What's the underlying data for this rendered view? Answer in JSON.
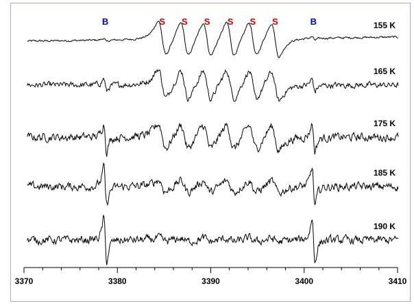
{
  "colors": {
    "s_marker": "#cc0000",
    "b_marker": "#0000cc",
    "trace": "#000000",
    "frame_border": "#a9a9d0"
  },
  "chart_data": {
    "type": "line",
    "title": "",
    "xlabel": "",
    "ylabel": "",
    "xlim": [
      3370,
      3410
    ],
    "x_ticks": [
      3370,
      3380,
      3390,
      3400,
      3410
    ],
    "x_tick_labels": [
      "3370",
      "3380",
      "3390",
      "3400",
      "3410"
    ],
    "grid": false,
    "peak_markers": [
      {
        "label": "B",
        "x": 3378.7,
        "kind": "B"
      },
      {
        "label": "S",
        "x": 3384.8,
        "kind": "S"
      },
      {
        "label": "S",
        "x": 3387.2,
        "kind": "S"
      },
      {
        "label": "S",
        "x": 3389.6,
        "kind": "S"
      },
      {
        "label": "S",
        "x": 3392.1,
        "kind": "S"
      },
      {
        "label": "S",
        "x": 3394.5,
        "kind": "S"
      },
      {
        "label": "S",
        "x": 3396.9,
        "kind": "S"
      },
      {
        "label": "B",
        "x": 3401.0,
        "kind": "B"
      }
    ],
    "series": [
      {
        "name": "155 K",
        "b_amplitude": 0.08,
        "s_amplitude": 1.0,
        "noise": 0.05,
        "drift": 0.2
      },
      {
        "name": "165 K",
        "b_amplitude": 0.28,
        "s_amplitude": 0.85,
        "noise": 0.14,
        "drift": 0.0
      },
      {
        "name": "175 K",
        "b_amplitude": 0.62,
        "s_amplitude": 0.72,
        "noise": 0.2,
        "drift": 0.0
      },
      {
        "name": "185 K",
        "b_amplitude": 0.85,
        "s_amplitude": 0.35,
        "noise": 0.2,
        "drift": 0.0
      },
      {
        "name": "190 K",
        "b_amplitude": 0.95,
        "s_amplitude": 0.1,
        "noise": 0.2,
        "drift": 0.0
      }
    ]
  }
}
